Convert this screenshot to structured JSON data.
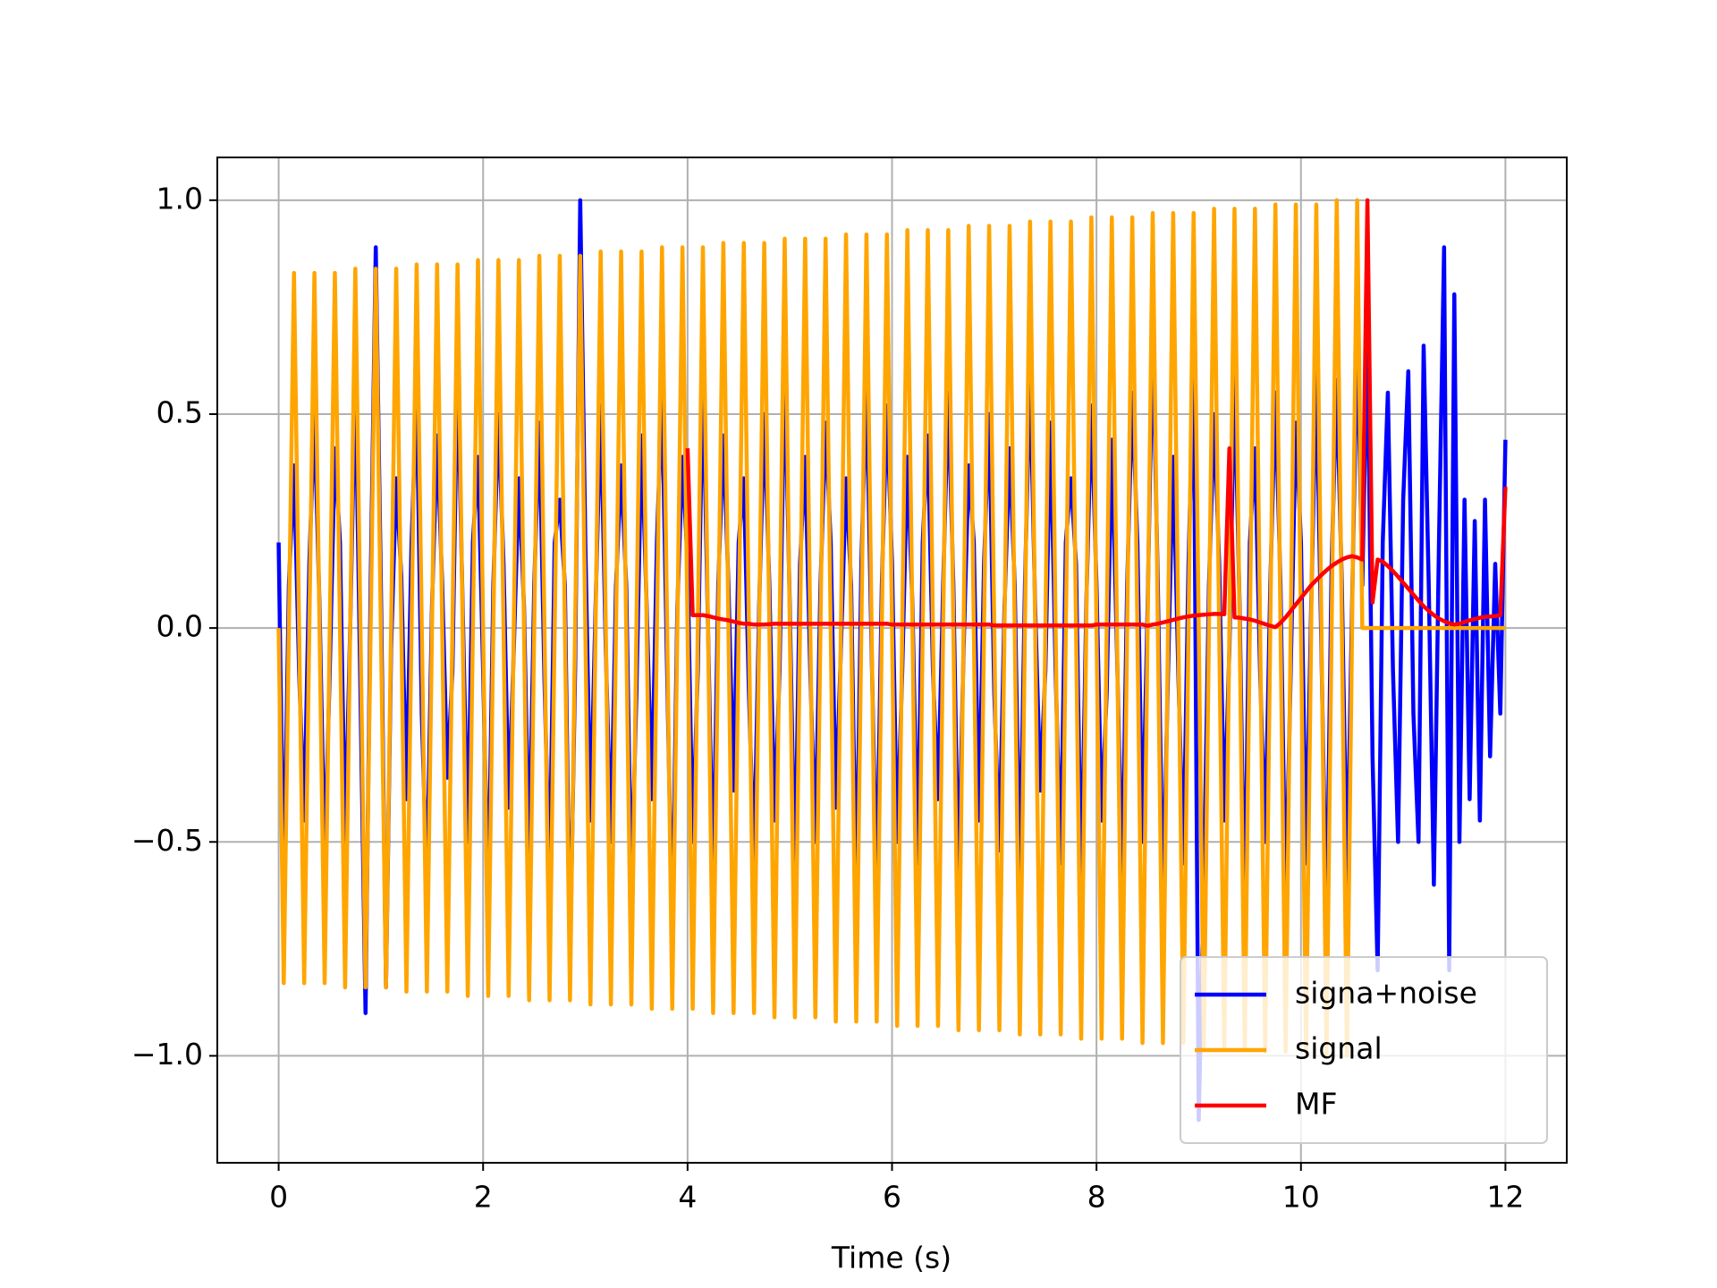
{
  "chart_data": {
    "type": "line",
    "xlabel": "Time (s)",
    "xlim": [
      -0.6,
      12.6
    ],
    "ylim": [
      -1.25,
      1.1
    ],
    "xticks": [
      0,
      2,
      4,
      6,
      8,
      10,
      12
    ],
    "yticks": [
      {
        "value": -1.0,
        "label": "−1.0"
      },
      {
        "value": -0.5,
        "label": "−0.5"
      },
      {
        "value": 0.0,
        "label": "0.0"
      },
      0.5,
      {
        "value": 1.0,
        "label": "1.0"
      }
    ],
    "grid": true,
    "legend": "lower right",
    "x": [
      0,
      0.05,
      0.1,
      0.15,
      0.2,
      0.25,
      0.3,
      0.35,
      0.4,
      0.45,
      0.5,
      0.55,
      0.6,
      0.65,
      0.7,
      0.75,
      0.8,
      0.85,
      0.9,
      0.95,
      1,
      1.05,
      1.1,
      1.15,
      1.2,
      1.25,
      1.3,
      1.35,
      1.4,
      1.45,
      1.5,
      1.55,
      1.6,
      1.65,
      1.7,
      1.75,
      1.8,
      1.85,
      1.9,
      1.95,
      2,
      2.05,
      2.1,
      2.15,
      2.2,
      2.25,
      2.3,
      2.35,
      2.4,
      2.45,
      2.5,
      2.55,
      2.6,
      2.65,
      2.7,
      2.75,
      2.8,
      2.85,
      2.9,
      2.95,
      3,
      3.05,
      3.1,
      3.15,
      3.2,
      3.25,
      3.3,
      3.35,
      3.4,
      3.45,
      3.5,
      3.55,
      3.6,
      3.65,
      3.7,
      3.75,
      3.8,
      3.85,
      3.9,
      3.95,
      4,
      4.05,
      4.1,
      4.15,
      4.2,
      4.25,
      4.3,
      4.35,
      4.4,
      4.45,
      4.5,
      4.55,
      4.6,
      4.65,
      4.7,
      4.75,
      4.8,
      4.85,
      4.9,
      4.95,
      5,
      5.05,
      5.1,
      5.15,
      5.2,
      5.25,
      5.3,
      5.35,
      5.4,
      5.45,
      5.5,
      5.55,
      5.6,
      5.65,
      5.7,
      5.75,
      5.8,
      5.85,
      5.9,
      5.95,
      6,
      6.05,
      6.1,
      6.15,
      6.2,
      6.25,
      6.3,
      6.35,
      6.4,
      6.45,
      6.5,
      6.55,
      6.6,
      6.65,
      6.7,
      6.75,
      6.8,
      6.85,
      6.9,
      6.95,
      7,
      7.05,
      7.1,
      7.15,
      7.2,
      7.25,
      7.3,
      7.35,
      7.4,
      7.45,
      7.5,
      7.55,
      7.6,
      7.65,
      7.7,
      7.75,
      7.8,
      7.85,
      7.9,
      7.95,
      8,
      8.05,
      8.1,
      8.15,
      8.2,
      8.25,
      8.3,
      8.35,
      8.4,
      8.45,
      8.5,
      8.55,
      8.6,
      8.65,
      8.7,
      8.75,
      8.8,
      8.85,
      8.9,
      8.95,
      9,
      9.05,
      9.1,
      9.15,
      9.2,
      9.25,
      9.3,
      9.35,
      9.4,
      9.45,
      9.5,
      9.55,
      9.6,
      9.65,
      9.7,
      9.75,
      9.8,
      9.85,
      9.9,
      9.95,
      10,
      10.05,
      10.1,
      10.15,
      10.2,
      10.25,
      10.3,
      10.35,
      10.4,
      10.45,
      10.5,
      10.55,
      10.6,
      10.65,
      10.7,
      10.75,
      10.8,
      10.85,
      10.9,
      10.95,
      11,
      11.05,
      11.1,
      11.15,
      11.2,
      11.25,
      11.3,
      11.35,
      11.4,
      11.45,
      11.5,
      11.55,
      11.6,
      11.65,
      11.7,
      11.75,
      11.8,
      11.85,
      11.9,
      11.95,
      12
    ],
    "series": [
      {
        "name": "signa+noise",
        "color": "#0000ff",
        "values": [
          0.2,
          -0.63,
          0.1,
          0.38,
          -0.1,
          -0.45,
          0.15,
          0.5,
          0.05,
          -0.55,
          -0.1,
          0.42,
          0.2,
          -0.5,
          0,
          0.6,
          -0.15,
          -0.9,
          0.1,
          0.89,
          0.1,
          -0.84,
          -0.05,
          0.35,
          0.12,
          -0.4,
          0.2,
          0.55,
          -0.2,
          -0.6,
          0.05,
          0.45,
          0.1,
          -0.35,
          -0.1,
          0.62,
          0.05,
          -0.5,
          0.2,
          0.4,
          -0.1,
          -0.65,
          0.1,
          0.5,
          0.15,
          -0.42,
          -0.05,
          0.35,
          0.05,
          -0.55,
          0.1,
          0.48,
          -0.12,
          -0.6,
          0.2,
          0.3,
          0.1,
          -0.78,
          -0.1,
          1.0,
          0.2,
          -0.45,
          0.05,
          0.52,
          -0.05,
          -0.5,
          0.1,
          0.38,
          0.1,
          -0.62,
          -0.15,
          0.45,
          0.05,
          -0.4,
          0.2,
          0.55,
          -0.1,
          -0.72,
          0.05,
          0.4,
          0.15,
          -0.5,
          -0.1,
          0.6,
          0,
          -0.6,
          0.1,
          0.45,
          0.1,
          -0.38,
          0.2,
          0.35,
          -0.15,
          -0.55,
          0.05,
          0.5,
          0.1,
          -0.45,
          -0.1,
          0.62,
          0.05,
          -0.6,
          0.15,
          0.4,
          -0.1,
          -0.5,
          0.1,
          0.48,
          0.2,
          -0.42,
          -0.05,
          0.35,
          0.1,
          -0.65,
          0.15,
          0.58,
          -0.05,
          -0.62,
          0.1,
          0.52,
          0.15,
          -0.5,
          -0.1,
          0.4,
          0.05,
          -0.55,
          0.2,
          0.45,
          -0.1,
          -0.4,
          0.1,
          0.55,
          0.1,
          -0.6,
          -0.05,
          0.38,
          0.2,
          -0.45,
          0.15,
          0.5,
          -0.15,
          -0.52,
          0.05,
          0.42,
          0.1,
          -0.6,
          0.1,
          0.6,
          0.05,
          -0.38,
          -0.1,
          0.48,
          -0.1,
          -0.55,
          0.2,
          0.35,
          0.15,
          -0.62,
          0.05,
          0.52,
          0.1,
          -0.45,
          -0.15,
          0.44,
          -0.05,
          -0.6,
          0.1,
          0.55,
          0.2,
          -0.5,
          0.05,
          0.7,
          0.1,
          -0.65,
          -0.1,
          0.4,
          -0.1,
          -0.55,
          0.15,
          0.62,
          -1.15,
          -0.6,
          0.1,
          0.5,
          0.15,
          -0.45,
          -0.05,
          0.6,
          0.05,
          -0.7,
          0.2,
          0.42,
          -0.1,
          -0.5,
          0.1,
          0.55,
          0.1,
          -0.65,
          -0.1,
          0.48,
          0.2,
          -0.55,
          0.05,
          0.6,
          -0.05,
          -0.72,
          0.15,
          0.58,
          0.1,
          -0.6,
          0.05,
          0.7,
          0.1,
          0.7,
          -0.3,
          -0.8,
          0.2,
          0.55,
          -0.1,
          -0.5,
          0.3,
          0.6,
          -0.2,
          -0.5,
          0.66,
          0.1,
          -0.6,
          0.2,
          0.89,
          -0.8,
          0.78,
          -0.5,
          0.3,
          -0.4,
          0.25,
          -0.45,
          0.3,
          -0.3,
          0.15,
          -0.2,
          0.44
        ]
      },
      {
        "name": "signal",
        "color": "#ffa500",
        "values": [
          0,
          -0.83,
          0,
          0.83,
          0,
          -0.83,
          0,
          0.83,
          0,
          -0.83,
          0,
          0.83,
          0,
          -0.84,
          0,
          0.84,
          0,
          -0.84,
          0,
          0.84,
          0,
          -0.84,
          0,
          0.84,
          0,
          -0.85,
          0,
          0.85,
          0,
          -0.85,
          0,
          0.85,
          0,
          -0.85,
          0,
          0.85,
          0,
          -0.86,
          0,
          0.86,
          0,
          -0.86,
          0,
          0.86,
          0,
          -0.86,
          0,
          0.86,
          0,
          -0.87,
          0,
          0.87,
          0,
          -0.87,
          0,
          0.87,
          0,
          -0.87,
          0,
          0.87,
          0,
          -0.88,
          0,
          0.88,
          0,
          -0.88,
          0,
          0.88,
          0,
          -0.88,
          0,
          0.88,
          0,
          -0.89,
          0,
          0.89,
          0,
          -0.89,
          0,
          0.89,
          0,
          -0.89,
          0,
          0.89,
          0,
          -0.9,
          0,
          0.9,
          0,
          -0.9,
          0,
          0.9,
          0,
          -0.9,
          0,
          0.9,
          0,
          -0.91,
          0,
          0.91,
          0,
          -0.91,
          0,
          0.91,
          0,
          -0.91,
          0,
          0.91,
          0,
          -0.92,
          0,
          0.92,
          0,
          -0.92,
          0,
          0.92,
          0,
          -0.92,
          0,
          0.92,
          0,
          -0.93,
          0,
          0.93,
          0,
          -0.93,
          0,
          0.93,
          0,
          -0.93,
          0,
          0.93,
          0,
          -0.94,
          0,
          0.94,
          0,
          -0.94,
          0,
          0.94,
          0,
          -0.94,
          0,
          0.94,
          0,
          -0.95,
          0,
          0.95,
          0,
          -0.95,
          0,
          0.95,
          0,
          -0.95,
          0,
          0.95,
          0,
          -0.96,
          0,
          0.96,
          0,
          -0.96,
          0,
          0.96,
          0,
          -0.96,
          0,
          0.96,
          0,
          -0.97,
          0,
          0.97,
          0,
          -0.97,
          0,
          0.97,
          0,
          -0.97,
          0,
          0.97,
          0,
          -0.98,
          0,
          0.98,
          0,
          -0.98,
          0,
          0.98,
          0,
          -0.98,
          0,
          0.98,
          0,
          -0.99,
          0,
          0.99,
          0,
          -0.99,
          0,
          0.99,
          0,
          -0.99,
          0,
          0.99,
          0,
          -1.0,
          0,
          1.0,
          0,
          -1.0,
          0,
          1.0,
          0,
          0,
          0,
          0,
          0,
          0,
          0,
          0,
          0,
          0,
          0,
          0,
          0,
          0,
          0,
          0,
          0,
          0,
          0,
          0,
          0,
          0,
          0,
          0,
          0,
          0,
          0,
          0,
          0
        ]
      },
      {
        "name": "MF",
        "color": "#ff0000",
        "values": [
          null,
          null,
          null,
          null,
          null,
          null,
          null,
          null,
          null,
          null,
          null,
          null,
          null,
          null,
          null,
          null,
          null,
          null,
          null,
          null,
          null,
          null,
          null,
          null,
          null,
          null,
          null,
          null,
          null,
          null,
          null,
          null,
          null,
          null,
          null,
          null,
          null,
          null,
          null,
          null,
          null,
          null,
          null,
          null,
          null,
          null,
          null,
          null,
          null,
          null,
          null,
          null,
          null,
          null,
          null,
          null,
          null,
          null,
          null,
          null,
          null,
          null,
          null,
          null,
          null,
          null,
          null,
          null,
          null,
          null,
          null,
          null,
          null,
          null,
          null,
          null,
          null,
          null,
          null,
          null,
          0.42,
          0.03,
          0.03,
          0.03,
          0.028,
          0.025,
          0.022,
          0.02,
          0.018,
          0.015,
          0.012,
          0.01,
          0.01,
          0.008,
          0.008,
          0.008,
          0.009,
          0.01,
          0.01,
          0.01,
          0.01,
          0.01,
          0.01,
          0.01,
          0.01,
          0.01,
          0.01,
          0.01,
          0.01,
          0.01,
          0.01,
          0.01,
          0.01,
          0.01,
          0.01,
          0.01,
          0.01,
          0.01,
          0.01,
          0.01,
          0.008,
          0.008,
          0.008,
          0.008,
          0.008,
          0.008,
          0.008,
          0.008,
          0.008,
          0.008,
          0.008,
          0.008,
          0.008,
          0.008,
          0.008,
          0.008,
          0.008,
          0.008,
          0.008,
          0.008,
          0.006,
          0.006,
          0.006,
          0.006,
          0.006,
          0.006,
          0.006,
          0.006,
          0.006,
          0.006,
          0.006,
          0.006,
          0.006,
          0.006,
          0.006,
          0.006,
          0.006,
          0.006,
          0.006,
          0.006,
          0.008,
          0.008,
          0.008,
          0.008,
          0.008,
          0.008,
          0.008,
          0.008,
          0.008,
          0.008,
          0.005,
          0.008,
          0.01,
          0.013,
          0.016,
          0.019,
          0.022,
          0.025,
          0.027,
          0.029,
          0.03,
          0.031,
          0.032,
          0.033,
          0.033,
          0.032,
          0.42,
          0.025,
          0.024,
          0.022,
          0.02,
          0.017,
          0.013,
          0.009,
          0.005,
          0.002,
          0.012,
          0.025,
          0.04,
          0.055,
          0.07,
          0.085,
          0.1,
          0.112,
          0.124,
          0.135,
          0.145,
          0.153,
          0.16,
          0.165,
          0.168,
          0.165,
          0.16,
          1.0,
          0.06,
          0.16,
          0.155,
          0.145,
          0.133,
          0.12,
          0.106,
          0.092,
          0.078,
          0.064,
          0.051,
          0.04,
          0.03,
          0.022,
          0.016,
          0.011,
          0.008,
          0.01,
          0.014,
          0.018,
          0.021,
          0.024,
          0.026,
          0.027,
          0.028,
          0.03,
          0.33
        ]
      }
    ]
  }
}
